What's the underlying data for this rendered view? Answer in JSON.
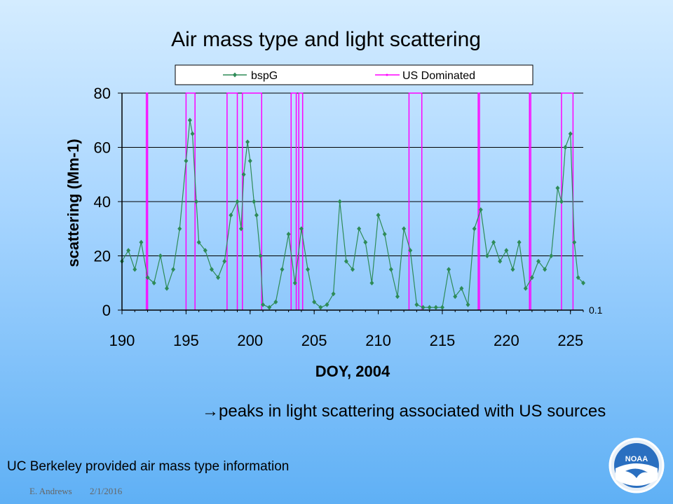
{
  "slide": {
    "title": "Air mass type and light scattering",
    "note_arrow": "→",
    "note": "peaks in light scattering associated with US sources",
    "footer_info": "UC Berkeley provided air mass type information",
    "author": "E. Andrews",
    "date": "2/1/2016",
    "logo_text": "NOAA"
  },
  "chart_data": {
    "type": "line",
    "xlabel": "DOY, 2004",
    "ylabel": "scattering (Mm-1)",
    "xlim": [
      190,
      226
    ],
    "ylim": [
      0,
      80
    ],
    "xticks": [
      "190",
      "195",
      "200",
      "205",
      "210",
      "215",
      "220",
      "225"
    ],
    "yticks": [
      "0",
      "20",
      "40",
      "60",
      "80"
    ],
    "right_label": "0.1",
    "grid": "horizontal",
    "legend_position": "top",
    "series": [
      {
        "name": "bspG",
        "color": "#2e8b57",
        "marker": "diamond",
        "x": [
          190,
          190.5,
          191,
          191.5,
          192,
          192.5,
          193,
          193.5,
          194,
          194.5,
          195,
          195.3,
          195.5,
          195.8,
          196,
          196.5,
          197,
          197.5,
          198,
          198.5,
          199,
          199.3,
          199.5,
          199.8,
          200,
          200.3,
          200.5,
          200.8,
          201,
          201.5,
          202,
          202.5,
          203,
          203.5,
          204,
          204.5,
          205,
          205.5,
          206,
          206.5,
          207,
          207.5,
          208,
          208.5,
          209,
          209.5,
          210,
          210.5,
          211,
          211.5,
          212,
          212.5,
          213,
          213.5,
          214,
          214.5,
          215,
          215.5,
          216,
          216.5,
          217,
          217.5,
          218,
          218.5,
          219,
          219.5,
          220,
          220.5,
          221,
          221.5,
          222,
          222.5,
          223,
          223.5,
          224,
          224.3,
          224.6,
          225,
          225.3,
          225.6,
          226
        ],
        "y": [
          18,
          22,
          15,
          25,
          12,
          10,
          20,
          8,
          15,
          30,
          55,
          70,
          65,
          40,
          25,
          22,
          15,
          12,
          18,
          35,
          40,
          30,
          50,
          62,
          55,
          40,
          35,
          20,
          2,
          1,
          3,
          15,
          28,
          10,
          30,
          15,
          3,
          1,
          2,
          6,
          40,
          18,
          15,
          30,
          25,
          10,
          35,
          28,
          15,
          5,
          30,
          22,
          2,
          1,
          1,
          1,
          1,
          15,
          5,
          8,
          2,
          30,
          37,
          20,
          25,
          18,
          22,
          15,
          25,
          8,
          12,
          18,
          15,
          20,
          45,
          40,
          60,
          65,
          25,
          12,
          10
        ]
      },
      {
        "name": "US Dominated",
        "color": "#ff00ff",
        "marker": "dot",
        "segments": [
          [
            191.9,
            192.0
          ],
          [
            195.0,
            195.7
          ],
          [
            198.2,
            199.0
          ],
          [
            199.4,
            200.9
          ],
          [
            203.2,
            203.6
          ],
          [
            203.8,
            204.1
          ],
          [
            212.4,
            213.4
          ],
          [
            217.8,
            217.9
          ],
          [
            221.8,
            221.9
          ],
          [
            224.3,
            225.2
          ]
        ]
      }
    ]
  }
}
